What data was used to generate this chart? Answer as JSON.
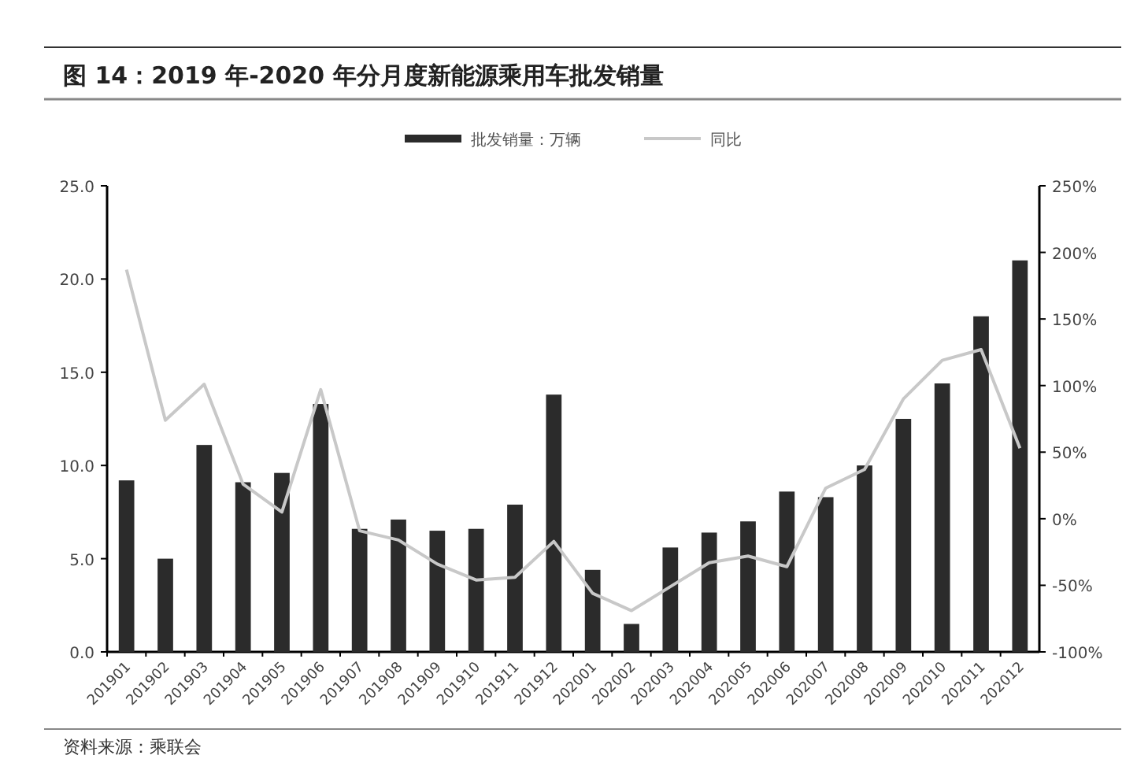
{
  "chart_data": {
    "type": "bar",
    "title": "图 14：2019 年-2020 年分月度新能源乘用车批发销量",
    "categories": [
      "201901",
      "201902",
      "201903",
      "201904",
      "201905",
      "201906",
      "201907",
      "201908",
      "201909",
      "201910",
      "201911",
      "201912",
      "202001",
      "202002",
      "202003",
      "202004",
      "202005",
      "202006",
      "202007",
      "202008",
      "202009",
      "202010",
      "202011",
      "202012"
    ],
    "series": [
      {
        "name": "批发销量：万辆",
        "color": "#2b2b2b",
        "values": [
          9.2,
          5.0,
          11.1,
          9.1,
          9.6,
          13.3,
          6.6,
          7.1,
          6.5,
          6.6,
          7.9,
          13.8,
          4.4,
          1.5,
          5.6,
          6.4,
          7.0,
          8.6,
          8.3,
          10.0,
          12.5,
          14.4,
          18.0,
          21.0
        ]
      },
      {
        "name": "同比",
        "type": "line",
        "axis": "y2",
        "color": "#c8c8c8",
        "values": [
          187,
          74,
          101,
          26,
          5,
          97,
          -9,
          -16,
          -34,
          -46,
          -44,
          -17,
          -56,
          -69,
          -51,
          -33,
          -28,
          -36,
          23,
          37,
          90,
          119,
          127,
          53
        ]
      }
    ],
    "ylim": [
      0,
      25
    ],
    "yticks": [
      {
        "value": 0,
        "label": "0.0"
      },
      {
        "value": 5,
        "label": "5.0"
      },
      {
        "value": 10,
        "label": "10.0"
      },
      {
        "value": 15,
        "label": "15.0"
      },
      {
        "value": 20,
        "label": "20.0"
      },
      {
        "value": 25,
        "label": "25.0"
      }
    ],
    "y2lim": [
      -100,
      250
    ],
    "y2ticks": [
      {
        "value": -100,
        "label": "-100%"
      },
      {
        "value": -50,
        "label": "-50%"
      },
      {
        "value": 0,
        "label": "0%"
      },
      {
        "value": 50,
        "label": "50%"
      },
      {
        "value": 100,
        "label": "100%"
      },
      {
        "value": 150,
        "label": "150%"
      },
      {
        "value": 200,
        "label": "200%"
      },
      {
        "value": 250,
        "label": "250%"
      }
    ],
    "legend": "top",
    "grid": false,
    "annotations": [
      "资料来源：乘联会"
    ]
  }
}
